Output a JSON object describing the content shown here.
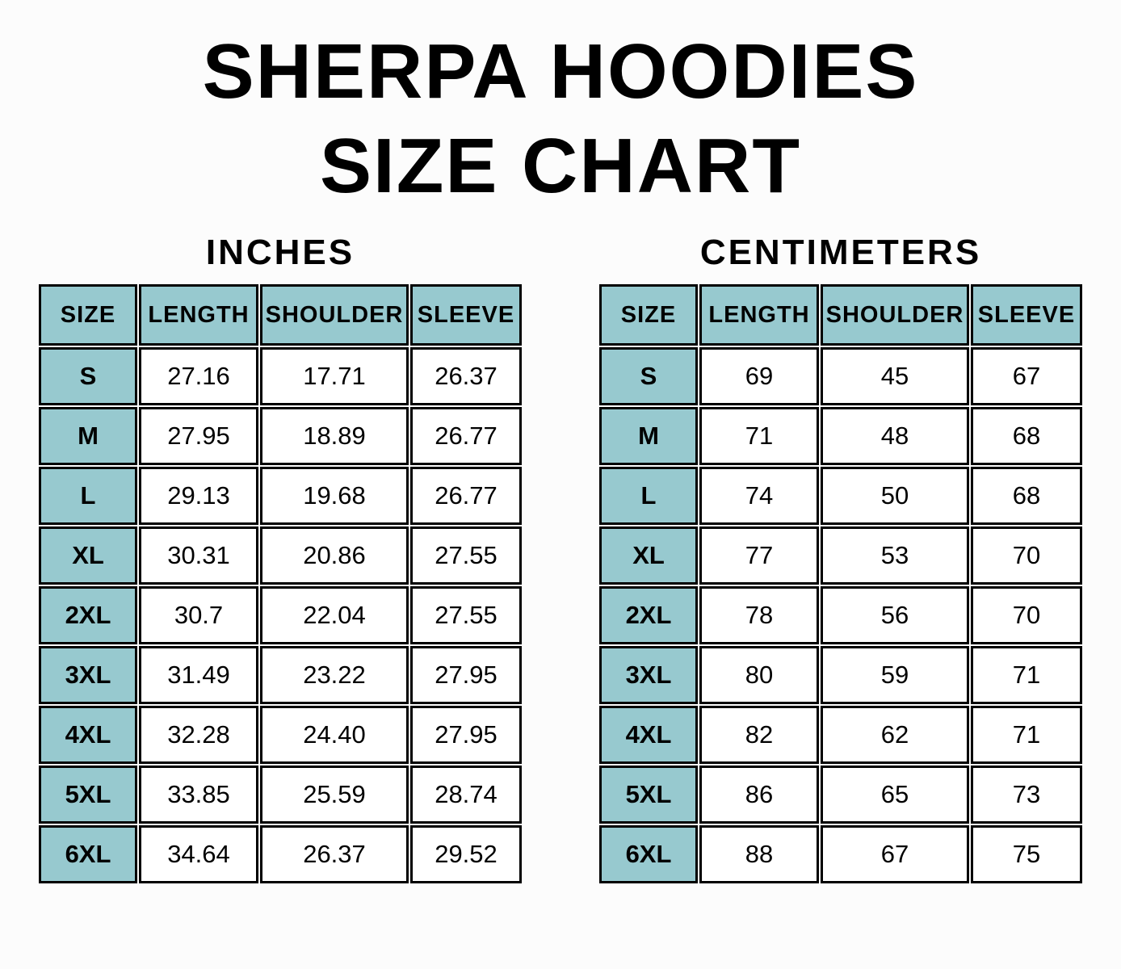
{
  "header": {
    "title_line1": "SHERPA HOODIES",
    "title_line2": "SIZE CHART"
  },
  "colors": {
    "header_fill": "#97C9CF",
    "border": "#000000",
    "background": "#FCFCFC",
    "text": "#000000"
  },
  "chart_data": [
    {
      "type": "table",
      "title": "INCHES",
      "columns": [
        "SIZE",
        "LENGTH",
        "SHOULDER",
        "SLEEVE"
      ],
      "rows": [
        [
          "S",
          "27.16",
          "17.71",
          "26.37"
        ],
        [
          "M",
          "27.95",
          "18.89",
          "26.77"
        ],
        [
          "L",
          "29.13",
          "19.68",
          "26.77"
        ],
        [
          "XL",
          "30.31",
          "20.86",
          "27.55"
        ],
        [
          "2XL",
          "30.7",
          "22.04",
          "27.55"
        ],
        [
          "3XL",
          "31.49",
          "23.22",
          "27.95"
        ],
        [
          "4XL",
          "32.28",
          "24.40",
          "27.95"
        ],
        [
          "5XL",
          "33.85",
          "25.59",
          "28.74"
        ],
        [
          "6XL",
          "34.64",
          "26.37",
          "29.52"
        ]
      ]
    },
    {
      "type": "table",
      "title": "CENTIMETERS",
      "columns": [
        "SIZE",
        "LENGTH",
        "SHOULDER",
        "SLEEVE"
      ],
      "rows": [
        [
          "S",
          "69",
          "45",
          "67"
        ],
        [
          "M",
          "71",
          "48",
          "68"
        ],
        [
          "L",
          "74",
          "50",
          "68"
        ],
        [
          "XL",
          "77",
          "53",
          "70"
        ],
        [
          "2XL",
          "78",
          "56",
          "70"
        ],
        [
          "3XL",
          "80",
          "59",
          "71"
        ],
        [
          "4XL",
          "82",
          "62",
          "71"
        ],
        [
          "5XL",
          "86",
          "65",
          "73"
        ],
        [
          "6XL",
          "88",
          "67",
          "75"
        ]
      ]
    }
  ]
}
